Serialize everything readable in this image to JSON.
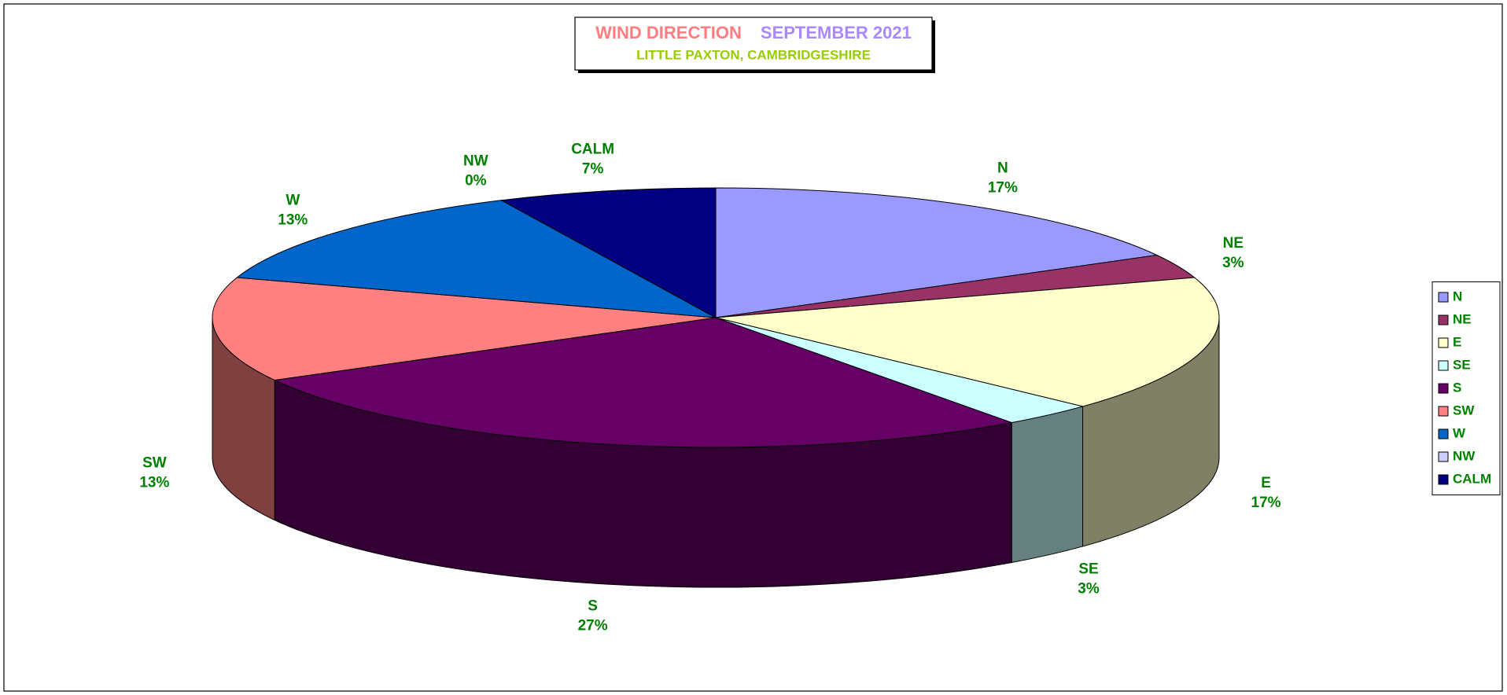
{
  "chart_data": {
    "type": "pie3d",
    "title": "WIND DIRECTION",
    "period": "SEPTEMBER 2021",
    "subtitle": "LITTLE PAXTON, CAMBRIDGESHIRE",
    "categories": [
      "N",
      "NE",
      "E",
      "SE",
      "S",
      "SW",
      "W",
      "NW",
      "CALM"
    ],
    "values": [
      17,
      3,
      17,
      3,
      27,
      13,
      13,
      0,
      7
    ],
    "value_labels": [
      "17%",
      "3%",
      "17%",
      "3%",
      "27%",
      "13%",
      "13%",
      "0%",
      "7%"
    ],
    "colors": [
      "#9999ff",
      "#993366",
      "#ffffcc",
      "#ccffff",
      "#660066",
      "#ff8080",
      "#0066cc",
      "#ccccff",
      "#000080"
    ],
    "legend": "right"
  }
}
